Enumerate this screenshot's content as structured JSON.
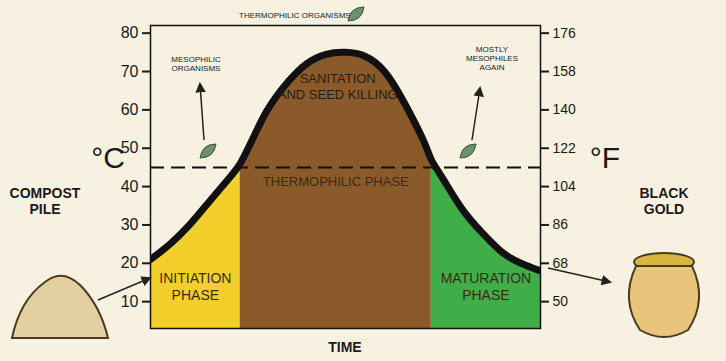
{
  "chart_data": {
    "type": "area",
    "x_label": "TIME",
    "y_label": "°C",
    "y2_label": "°F",
    "x": [
      0,
      5,
      10,
      15,
      20,
      23,
      26,
      30,
      35,
      40,
      45,
      50,
      55,
      60,
      65,
      70,
      72,
      75,
      80,
      85,
      90,
      95,
      100
    ],
    "values": [
      21,
      25,
      30,
      36,
      42,
      46,
      52,
      60,
      67,
      72,
      74.5,
      75,
      74,
      70,
      62,
      52,
      47,
      42,
      34,
      28,
      23,
      20,
      18
    ],
    "color": "#111111",
    "xlim": [
      0,
      100
    ],
    "xticks": [],
    "ylim": [
      3,
      82
    ],
    "yticks": [
      10,
      20,
      30,
      40,
      50,
      60,
      70,
      80
    ],
    "y2lim": [
      37.4,
      179.6
    ],
    "y2ticks": [
      50,
      68,
      86,
      104,
      122,
      140,
      158,
      176
    ],
    "tick_labels": "y",
    "grid": false,
    "threshold": 45,
    "phases": [
      {
        "label": "INITIATION\nPHASE",
        "start": 0,
        "end": 23,
        "color": "#f2cf2a"
      },
      {
        "label": "THERMOPHILIC PHASE",
        "start": 23,
        "end": 72,
        "color": "#8b5a2b"
      },
      {
        "label": "MATURATION\nPHASE",
        "start": 72,
        "end": 100,
        "color": "#3fae49"
      }
    ],
    "annotations": {
      "peak": "SANITATION\nAND SEED KILLING",
      "top": "THERMOPHILIC ORGANISMS ←",
      "rising": "MESOPHILIC\nORGANISMS",
      "falling": "MOSTLY\nMESOPHILES\nAGAIN",
      "start": "COMPOST\nPILE",
      "end": "BLACK\nGOLD"
    }
  }
}
